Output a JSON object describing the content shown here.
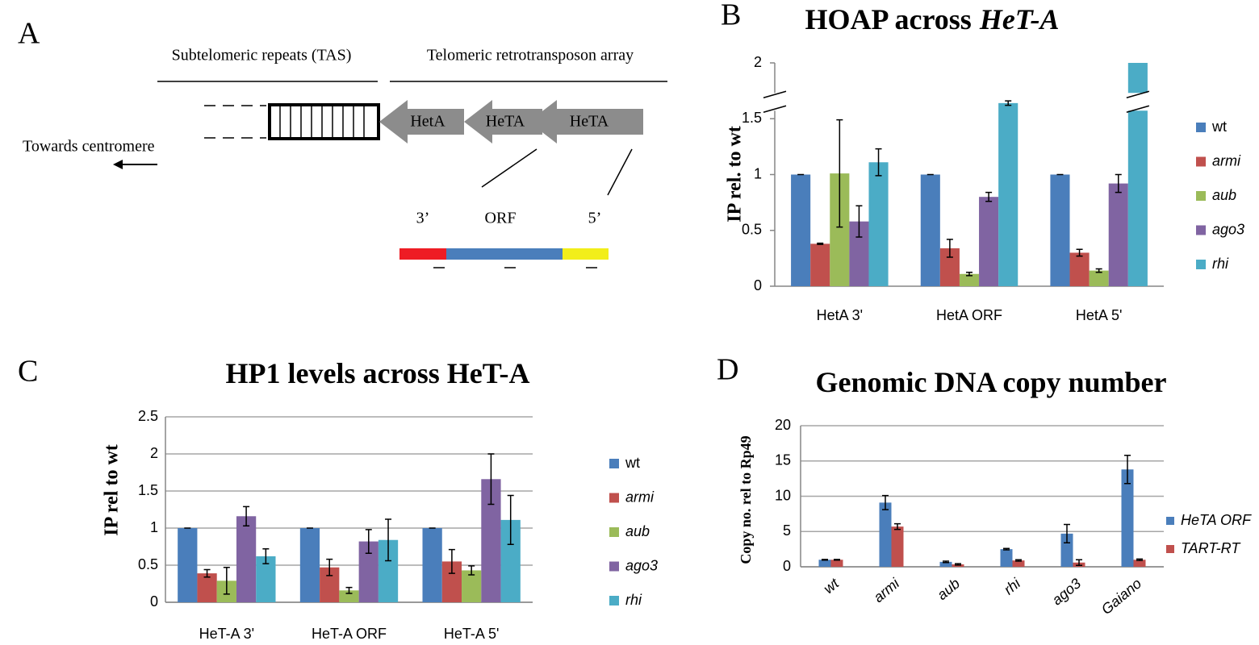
{
  "diagram": {
    "panel_label": "A",
    "tas_label": "Subtelomeric repeats (TAS)",
    "array_label": "Telomeric retrotransposon array",
    "centromere_label": "Towards centromere",
    "elements": [
      "HetA",
      "HeTA",
      "HeTA"
    ],
    "segments": [
      "3’",
      "ORF",
      "5’"
    ]
  },
  "chart_data": [
    {
      "type": "bar",
      "panel_label": "B",
      "title": [
        "HOAP across",
        "HeT-A"
      ],
      "ylabel": "IP rel. to wt",
      "categories": [
        "HetA 3'",
        "HetA ORF",
        "HetA 5'"
      ],
      "series": [
        {
          "name": "wt",
          "italic": false,
          "color": "#4a7ebb",
          "values": [
            1,
            1,
            1
          ],
          "errors": [
            0,
            0,
            0
          ]
        },
        {
          "name": "armi",
          "italic": true,
          "color": "#c0504d",
          "values": [
            0.38,
            0.34,
            0.3
          ],
          "errors": [
            0.005,
            0.08,
            0.03
          ]
        },
        {
          "name": "aub",
          "italic": true,
          "color": "#9bbb59",
          "values": [
            1.01,
            0.11,
            0.14
          ],
          "errors": [
            0.48,
            0.015,
            0.015
          ]
        },
        {
          "name": "ago3",
          "italic": true,
          "color": "#8064a2",
          "values": [
            0.58,
            0.8,
            0.92
          ],
          "errors": [
            0.14,
            0.04,
            0.08
          ]
        },
        {
          "name": "rhi",
          "italic": true,
          "color": "#4bacc6",
          "values": [
            1.11,
            1.64,
            2
          ],
          "errors": [
            0.12,
            0.02,
            null
          ]
        }
      ],
      "ylim": [
        0,
        2
      ],
      "yticks": [
        0,
        0.5,
        1,
        1.5,
        2
      ],
      "grid": false,
      "axis_break": true
    },
    {
      "type": "bar",
      "panel_label": "C",
      "title": [
        "HP1 levels across HeT-A"
      ],
      "ylabel": "IP rel to wt",
      "categories": [
        "HeT-A 3'",
        "HeT-A ORF",
        "HeT-A 5'"
      ],
      "series": [
        {
          "name": "wt",
          "italic": false,
          "color": "#4a7ebb",
          "values": [
            1,
            1,
            1
          ],
          "errors": [
            0,
            0,
            0
          ]
        },
        {
          "name": "armi",
          "italic": true,
          "color": "#c0504d",
          "values": [
            0.39,
            0.47,
            0.55
          ],
          "errors": [
            0.05,
            0.11,
            0.16
          ]
        },
        {
          "name": "aub",
          "italic": true,
          "color": "#9bbb59",
          "values": [
            0.29,
            0.16,
            0.43
          ],
          "errors": [
            0.18,
            0.04,
            0.06
          ]
        },
        {
          "name": "ago3",
          "italic": true,
          "color": "#8064a2",
          "values": [
            1.16,
            0.82,
            1.66
          ],
          "errors": [
            0.13,
            0.16,
            0.34
          ]
        },
        {
          "name": "rhi",
          "italic": true,
          "color": "#4bacc6",
          "values": [
            0.62,
            0.84,
            1.11
          ],
          "errors": [
            0.1,
            0.28,
            0.33
          ]
        }
      ],
      "ylim": [
        0,
        2.5
      ],
      "yticks": [
        0,
        0.5,
        1,
        1.5,
        2,
        2.5
      ],
      "grid": true
    },
    {
      "type": "bar",
      "panel_label": "D",
      "title": [
        "Genomic DNA copy number"
      ],
      "ylabel": "Copy no. rel  to Rp49",
      "categories": [
        "wt",
        "armi",
        "aub",
        "rhi",
        "ago3",
        "Gaiano"
      ],
      "category_italic": true,
      "series": [
        {
          "name": "HeTA ORF",
          "italic": true,
          "color": "#4a7ebb",
          "values": [
            1.0,
            9.1,
            0.7,
            2.5,
            4.7,
            13.8
          ],
          "errors": [
            0.05,
            1.0,
            0.1,
            0.1,
            1.3,
            2.0
          ]
        },
        {
          "name": "TART-RT",
          "italic": true,
          "color": "#c0504d",
          "values": [
            1.0,
            5.7,
            0.35,
            0.9,
            0.6,
            1.0
          ],
          "errors": [
            0.05,
            0.4,
            0.1,
            0.1,
            0.4,
            0.1
          ]
        }
      ],
      "ylim": [
        0,
        20
      ],
      "yticks": [
        0,
        5,
        10,
        15,
        20
      ],
      "grid": true
    }
  ]
}
